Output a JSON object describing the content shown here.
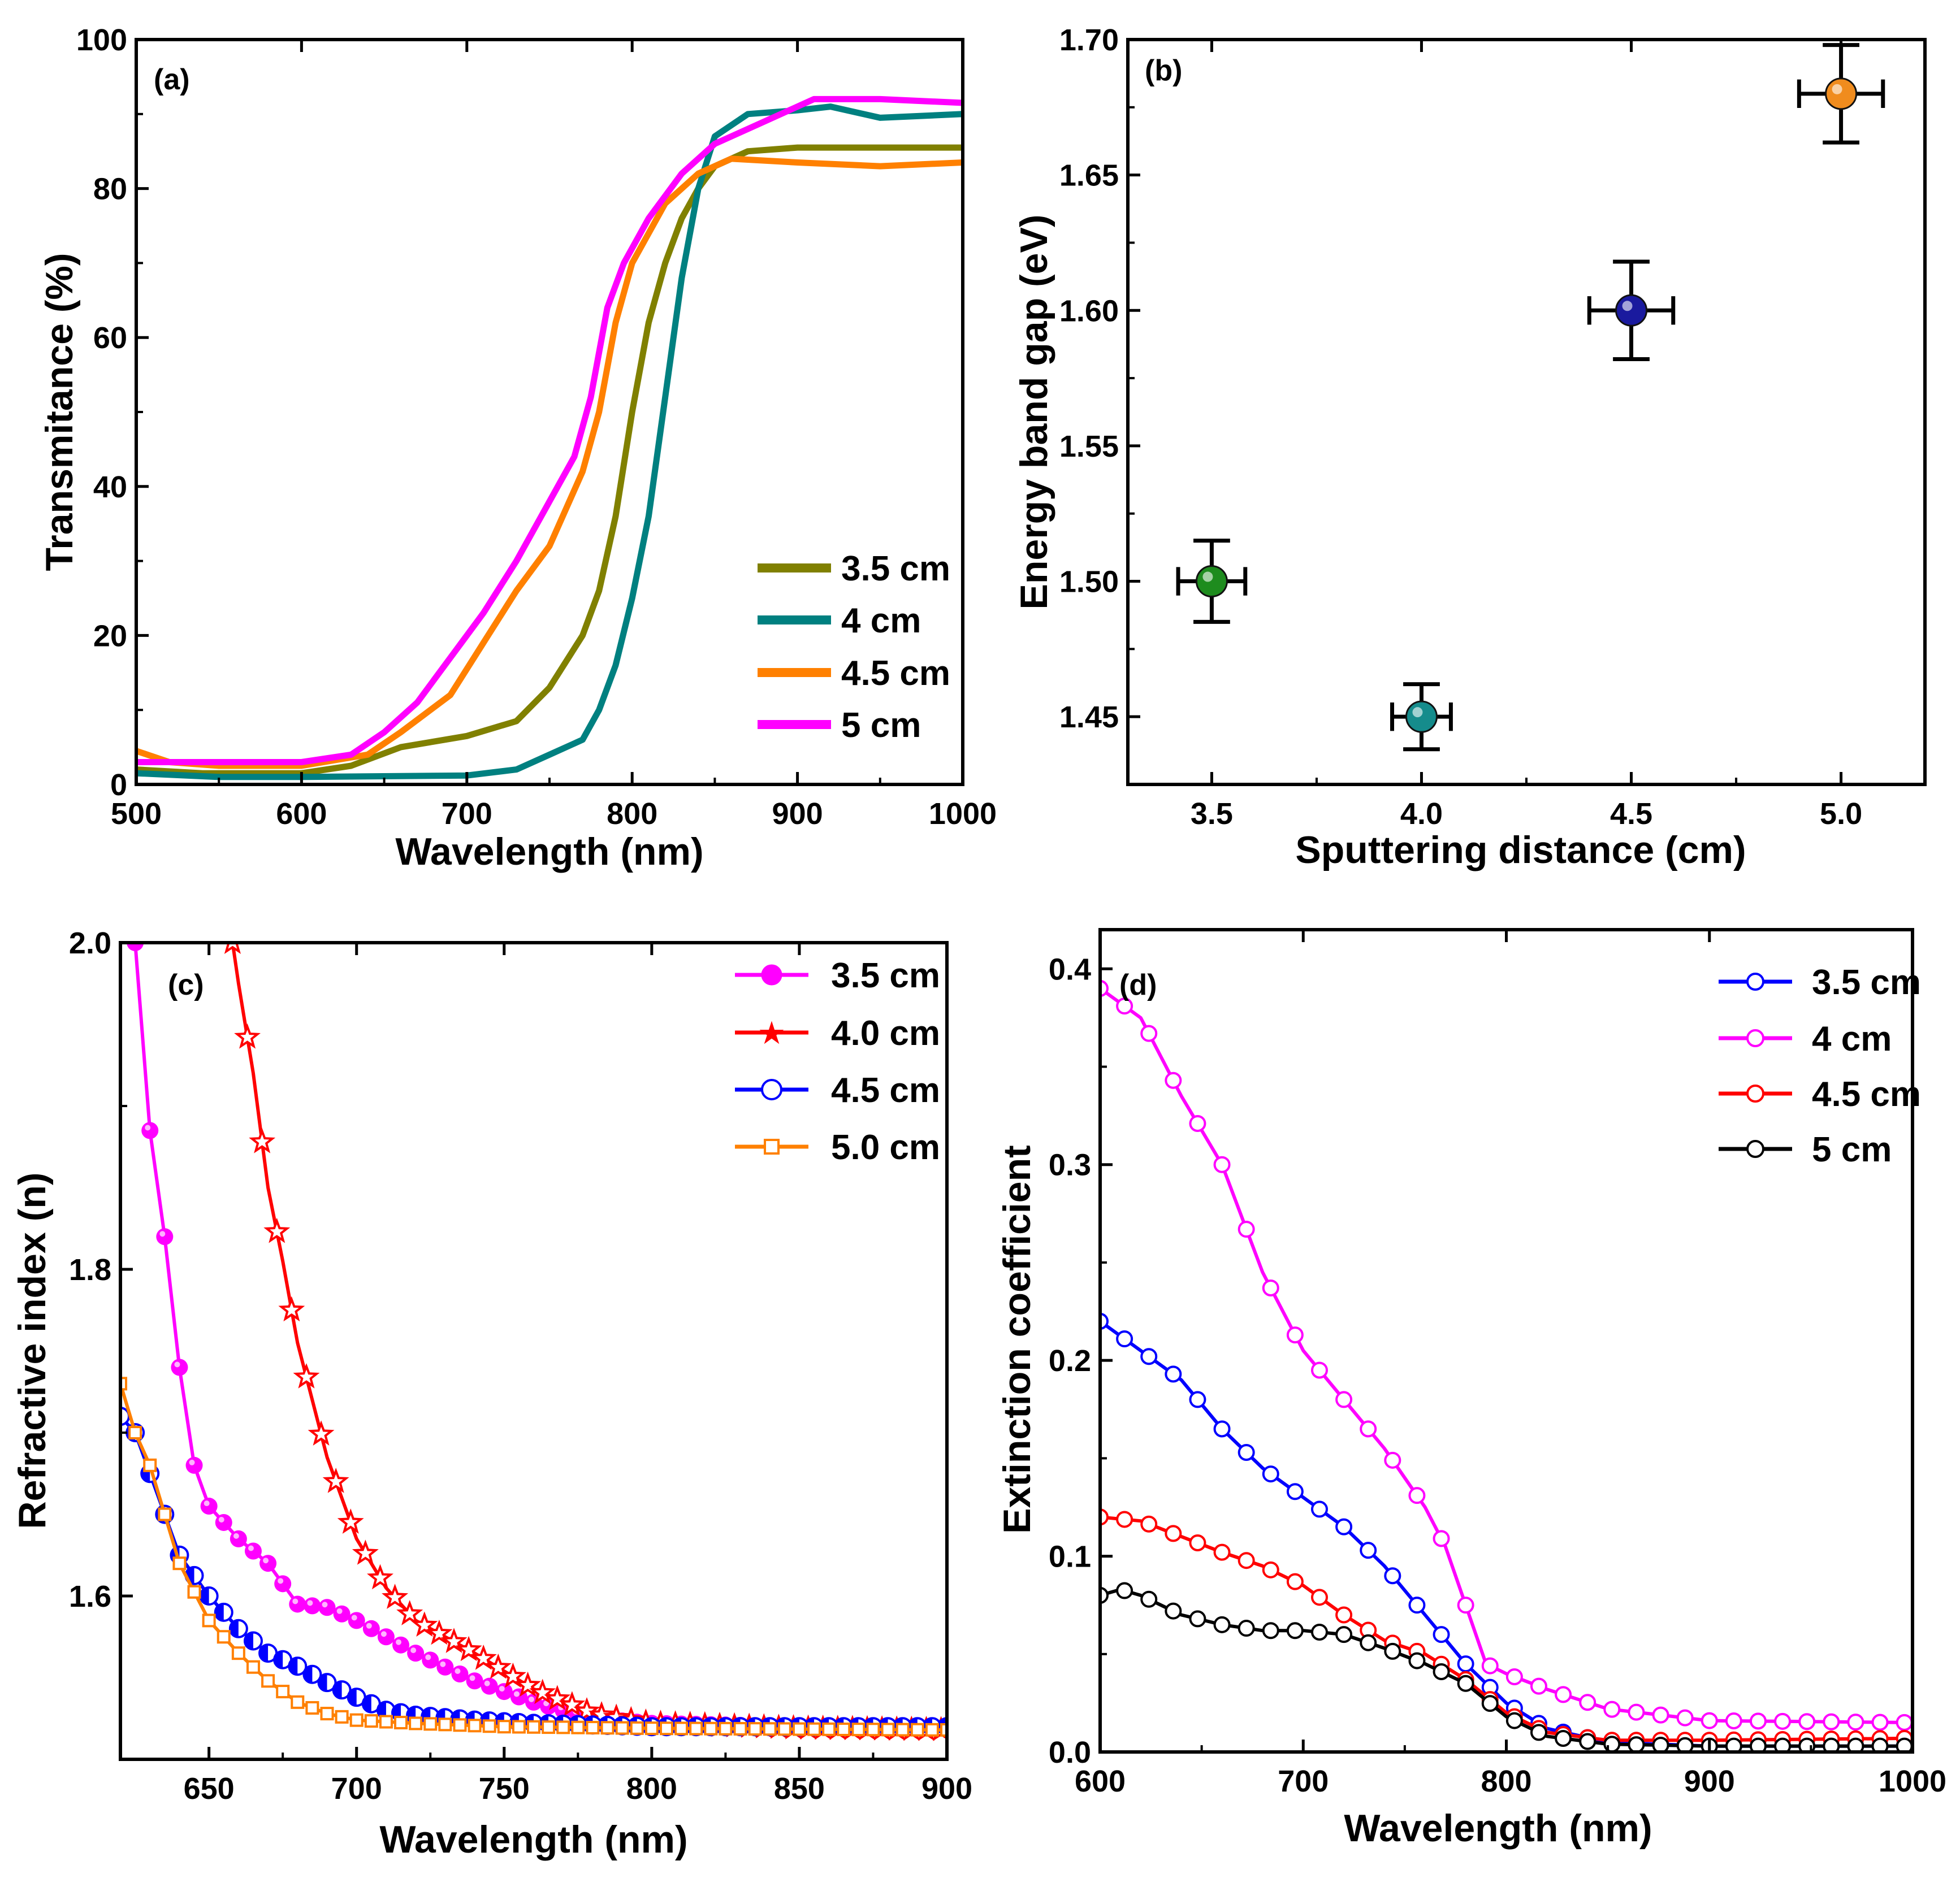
{
  "chart_data": [
    {
      "id": "a",
      "type": "line",
      "panel_label": "(a)",
      "xlabel": "Wavelength (nm)",
      "ylabel": "Transmitance (%)",
      "xlim": [
        500,
        1000
      ],
      "ylim": [
        0,
        100
      ],
      "xticks": [
        500,
        600,
        700,
        800,
        900,
        1000
      ],
      "yticks": [
        0,
        20,
        40,
        60,
        80,
        100
      ],
      "legend_position": "bottom-right",
      "series": [
        {
          "name": "3.5 cm",
          "color": "#808000",
          "points": [
            [
              500,
              2
            ],
            [
              540,
              1.5
            ],
            [
              600,
              1.5
            ],
            [
              630,
              2.5
            ],
            [
              660,
              5
            ],
            [
              700,
              6.5
            ],
            [
              730,
              8.5
            ],
            [
              750,
              13
            ],
            [
              770,
              20
            ],
            [
              780,
              26
            ],
            [
              790,
              36
            ],
            [
              800,
              50
            ],
            [
              810,
              62
            ],
            [
              820,
              70
            ],
            [
              830,
              76
            ],
            [
              840,
              80
            ],
            [
              850,
              83
            ],
            [
              870,
              85
            ],
            [
              900,
              85.5
            ],
            [
              1000,
              85.5
            ]
          ]
        },
        {
          "name": "4 cm",
          "color": "#008080",
          "points": [
            [
              500,
              1.5
            ],
            [
              550,
              1
            ],
            [
              600,
              1
            ],
            [
              700,
              1.2
            ],
            [
              730,
              2
            ],
            [
              750,
              4
            ],
            [
              770,
              6
            ],
            [
              780,
              10
            ],
            [
              790,
              16
            ],
            [
              800,
              25
            ],
            [
              810,
              36
            ],
            [
              820,
              52
            ],
            [
              830,
              68
            ],
            [
              840,
              80
            ],
            [
              850,
              87
            ],
            [
              870,
              90
            ],
            [
              900,
              90.5
            ],
            [
              920,
              91
            ],
            [
              950,
              89.5
            ],
            [
              1000,
              90
            ]
          ]
        },
        {
          "name": "4.5 cm",
          "color": "#FF8000",
          "points": [
            [
              500,
              4.5
            ],
            [
              520,
              3
            ],
            [
              550,
              2.5
            ],
            [
              600,
              2.5
            ],
            [
              640,
              4
            ],
            [
              660,
              7
            ],
            [
              690,
              12
            ],
            [
              710,
              19
            ],
            [
              730,
              26
            ],
            [
              750,
              32
            ],
            [
              770,
              42
            ],
            [
              780,
              50
            ],
            [
              790,
              62
            ],
            [
              800,
              70
            ],
            [
              820,
              78
            ],
            [
              840,
              82
            ],
            [
              860,
              84
            ],
            [
              900,
              83.5
            ],
            [
              950,
              83
            ],
            [
              1000,
              83.5
            ]
          ]
        },
        {
          "name": "5 cm",
          "color": "#FF00FF",
          "points": [
            [
              500,
              3
            ],
            [
              600,
              3
            ],
            [
              630,
              4
            ],
            [
              650,
              7
            ],
            [
              670,
              11
            ],
            [
              690,
              17
            ],
            [
              710,
              23
            ],
            [
              730,
              30
            ],
            [
              750,
              38
            ],
            [
              765,
              44
            ],
            [
              775,
              52
            ],
            [
              785,
              64
            ],
            [
              795,
              70
            ],
            [
              810,
              76
            ],
            [
              830,
              82
            ],
            [
              850,
              86
            ],
            [
              880,
              89
            ],
            [
              910,
              92
            ],
            [
              950,
              92
            ],
            [
              1000,
              91.5
            ]
          ]
        }
      ]
    },
    {
      "id": "b",
      "type": "scatter",
      "panel_label": "(b)",
      "xlabel": "Sputtering distance (cm)",
      "ylabel": "Energy band gap (eV)",
      "xlim": [
        3.3,
        5.2
      ],
      "ylim": [
        1.425,
        1.7
      ],
      "xticks": [
        "3.5",
        "4.0",
        "4.5",
        "5.0"
      ],
      "yticks": [
        "1.45",
        "1.50",
        "1.55",
        "1.60",
        "1.65",
        "1.70"
      ],
      "points": [
        {
          "x": 3.5,
          "y": 1.5,
          "xerr": 0.08,
          "yerr": 0.015,
          "color": "#1E8C1E"
        },
        {
          "x": 4.0,
          "y": 1.45,
          "xerr": 0.07,
          "yerr": 0.012,
          "color": "#158C8C"
        },
        {
          "x": 4.5,
          "y": 1.6,
          "xerr": 0.1,
          "yerr": 0.018,
          "color": "#1A1A9E"
        },
        {
          "x": 5.0,
          "y": 1.68,
          "xerr": 0.1,
          "yerr": 0.018,
          "color": "#F08C1E"
        }
      ]
    },
    {
      "id": "c",
      "type": "line",
      "panel_label": "(c)",
      "xlabel": "Wavelength (nm)",
      "ylabel": "Refractive index (n)",
      "xlim": [
        620,
        900
      ],
      "ylim": [
        1.5,
        2.0
      ],
      "xticks": [
        650,
        700,
        750,
        800,
        850,
        900
      ],
      "yticks": [
        "1.6",
        "1.8",
        "2.0"
      ],
      "legend_position": "top-right",
      "series": [
        {
          "name": "3.5 cm",
          "color": "#FF00FF",
          "marker": "ball",
          "points": [
            [
              625,
              2.0
            ],
            [
              630,
              1.885
            ],
            [
              635,
              1.82
            ],
            [
              640,
              1.74
            ],
            [
              645,
              1.68
            ],
            [
              650,
              1.655
            ],
            [
              660,
              1.635
            ],
            [
              670,
              1.62
            ],
            [
              680,
              1.595
            ],
            [
              690,
              1.593
            ],
            [
              700,
              1.585
            ],
            [
              710,
              1.575
            ],
            [
              720,
              1.565
            ],
            [
              740,
              1.548
            ],
            [
              760,
              1.535
            ],
            [
              780,
              1.525
            ],
            [
              800,
              1.522
            ],
            [
              850,
              1.52
            ],
            [
              900,
              1.52
            ]
          ]
        },
        {
          "name": "4.0 cm",
          "color": "#FF0000",
          "marker": "star",
          "points": [
            [
              658,
              2.0
            ],
            [
              660,
              1.975
            ],
            [
              665,
              1.92
            ],
            [
              670,
              1.85
            ],
            [
              675,
              1.805
            ],
            [
              680,
              1.755
            ],
            [
              685,
              1.72
            ],
            [
              690,
              1.685
            ],
            [
              700,
              1.635
            ],
            [
              710,
              1.605
            ],
            [
              720,
              1.585
            ],
            [
              740,
              1.565
            ],
            [
              760,
              1.543
            ],
            [
              780,
              1.528
            ],
            [
              800,
              1.522
            ],
            [
              850,
              1.519
            ],
            [
              900,
              1.518
            ]
          ]
        },
        {
          "name": "4.5 cm",
          "color": "#0000FF",
          "marker": "halfcircle",
          "points": [
            [
              620,
              1.71
            ],
            [
              625,
              1.7
            ],
            [
              630,
              1.675
            ],
            [
              640,
              1.625
            ],
            [
              650,
              1.6
            ],
            [
              660,
              1.58
            ],
            [
              670,
              1.565
            ],
            [
              680,
              1.557
            ],
            [
              690,
              1.547
            ],
            [
              700,
              1.538
            ],
            [
              710,
              1.53
            ],
            [
              720,
              1.527
            ],
            [
              740,
              1.524
            ],
            [
              760,
              1.522
            ],
            [
              800,
              1.52
            ],
            [
              850,
              1.52
            ],
            [
              900,
              1.52
            ]
          ]
        },
        {
          "name": "5.0 cm",
          "color": "#FF8000",
          "marker": "square",
          "points": [
            [
              620,
              1.73
            ],
            [
              625,
              1.7
            ],
            [
              630,
              1.68
            ],
            [
              640,
              1.62
            ],
            [
              650,
              1.585
            ],
            [
              660,
              1.565
            ],
            [
              670,
              1.548
            ],
            [
              680,
              1.535
            ],
            [
              690,
              1.528
            ],
            [
              700,
              1.524
            ],
            [
              720,
              1.522
            ],
            [
              750,
              1.52
            ],
            [
              800,
              1.519
            ],
            [
              900,
              1.518
            ]
          ]
        }
      ]
    },
    {
      "id": "d",
      "type": "line",
      "panel_label": "(d)",
      "xlabel": "Wavelength (nm)",
      "ylabel": "Extinction coefficient",
      "xlim": [
        600,
        1000
      ],
      "ylim": [
        0,
        0.42
      ],
      "xticks": [
        600,
        700,
        800,
        900,
        1000
      ],
      "yticks": [
        "0.0",
        "0.1",
        "0.2",
        "0.3",
        "0.4"
      ],
      "legend_position": "top-right",
      "series": [
        {
          "name": "3.5 cm",
          "color": "#0000FF",
          "points": [
            [
              600,
              0.22
            ],
            [
              620,
              0.205
            ],
            [
              640,
              0.19
            ],
            [
              660,
              0.165
            ],
            [
              680,
              0.145
            ],
            [
              700,
              0.13
            ],
            [
              720,
              0.115
            ],
            [
              740,
              0.095
            ],
            [
              760,
              0.07
            ],
            [
              780,
              0.045
            ],
            [
              800,
              0.025
            ],
            [
              820,
              0.012
            ],
            [
              850,
              0.005
            ],
            [
              900,
              0.003
            ],
            [
              1000,
              0.003
            ]
          ]
        },
        {
          "name": "4 cm",
          "color": "#FF00FF",
          "points": [
            [
              600,
              0.39
            ],
            [
              620,
              0.375
            ],
            [
              640,
              0.335
            ],
            [
              660,
              0.3
            ],
            [
              680,
              0.245
            ],
            [
              700,
              0.205
            ],
            [
              720,
              0.18
            ],
            [
              740,
              0.155
            ],
            [
              760,
              0.125
            ],
            [
              770,
              0.105
            ],
            [
              780,
              0.075
            ],
            [
              790,
              0.045
            ],
            [
              800,
              0.04
            ],
            [
              820,
              0.032
            ],
            [
              850,
              0.022
            ],
            [
              900,
              0.016
            ],
            [
              1000,
              0.015
            ]
          ]
        },
        {
          "name": "4.5 cm",
          "color": "#FF0000",
          "points": [
            [
              600,
              0.12
            ],
            [
              620,
              0.118
            ],
            [
              640,
              0.11
            ],
            [
              660,
              0.102
            ],
            [
              680,
              0.095
            ],
            [
              700,
              0.085
            ],
            [
              720,
              0.07
            ],
            [
              740,
              0.057
            ],
            [
              760,
              0.05
            ],
            [
              780,
              0.037
            ],
            [
              800,
              0.02
            ],
            [
              820,
              0.01
            ],
            [
              850,
              0.006
            ],
            [
              900,
              0.006
            ],
            [
              1000,
              0.007
            ]
          ]
        },
        {
          "name": "5 cm",
          "color": "#000000",
          "points": [
            [
              600,
              0.08
            ],
            [
              610,
              0.083
            ],
            [
              620,
              0.08
            ],
            [
              640,
              0.07
            ],
            [
              660,
              0.065
            ],
            [
              680,
              0.062
            ],
            [
              700,
              0.062
            ],
            [
              720,
              0.06
            ],
            [
              740,
              0.053
            ],
            [
              760,
              0.045
            ],
            [
              780,
              0.035
            ],
            [
              800,
              0.018
            ],
            [
              820,
              0.008
            ],
            [
              850,
              0.004
            ],
            [
              900,
              0.003
            ],
            [
              1000,
              0.003
            ]
          ]
        }
      ]
    }
  ]
}
